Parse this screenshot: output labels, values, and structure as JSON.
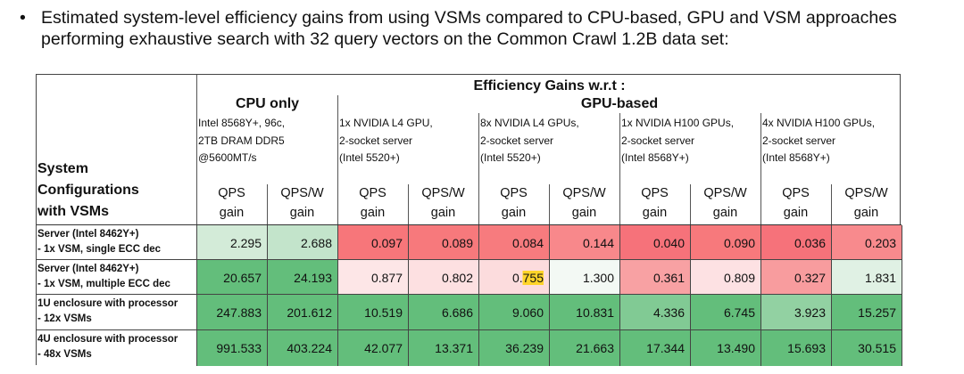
{
  "bullet": {
    "icon": "bullet-dot",
    "text": "Estimated system-level efficiency gains from using VSMs compared to CPU-based, GPU and VSM approaches performing exhaustive search with 32 query vectors on the Common Crawl 1.2B data set:"
  },
  "table": {
    "header_title": "Efficiency Gains w.r.t :",
    "row_header": [
      "System",
      "Configurations",
      "with VSMs"
    ],
    "groups": [
      {
        "label": "CPU only"
      },
      {
        "label": "GPU-based"
      }
    ],
    "systems": [
      [
        "Intel 8568Y+, 96c,",
        "2TB DRAM DDR5",
        "@5600MT/s"
      ],
      [
        "1x NVIDIA L4 GPU,",
        "2-socket server",
        "(Intel 5520+)"
      ],
      [
        "8x NVIDIA L4 GPUs,",
        "2-socket server",
        "(Intel 5520+)"
      ],
      [
        "1x NVIDIA H100 GPUs,",
        "2-socket server",
        "(Intel 8568Y+)"
      ],
      [
        "4x NVIDIA H100 GPUs,",
        "2-socket server",
        "(Intel 8568Y+)"
      ]
    ],
    "metric_labels": [
      [
        "QPS",
        "gain"
      ],
      [
        "QPS/W",
        "gain"
      ]
    ],
    "rows": [
      {
        "label": [
          "Server (Intel 8462Y+)",
          "- 1x VSM, single ECC dec"
        ],
        "values": [
          "2.295",
          "2.688",
          "0.097",
          "0.089",
          "0.084",
          "0.144",
          "0.040",
          "0.090",
          "0.036",
          "0.203"
        ],
        "colors": [
          "#d3ebd8",
          "#c3e4cb",
          "#f7767a",
          "#f7797c",
          "#f77b7e",
          "#f8888b",
          "#f6727a",
          "#f7797c",
          "#f6727a",
          "#f88a8d"
        ]
      },
      {
        "label": [
          "Server (Intel 8462Y+)",
          "- 1x VSM, multiple ECC dec"
        ],
        "values": [
          "20.657",
          "24.193",
          "0.877",
          "0.802",
          "0.755",
          "1.300",
          "0.361",
          "0.809",
          "0.327",
          "1.831"
        ],
        "highlight": {
          "index": 4,
          "text": "755",
          "color": "#ffd42a"
        },
        "colors": [
          "#63be7b",
          "#63be7b",
          "#fde6e7",
          "#fde0e1",
          "#fcdcdd",
          "#f3f9f4",
          "#f8a1a3",
          "#fde1e3",
          "#f89c9e",
          "#e0f1e4"
        ]
      },
      {
        "label": [
          "1U enclosure with processor",
          "- 12x VSMs"
        ],
        "values": [
          "247.883",
          "201.612",
          "10.519",
          "6.686",
          "9.060",
          "10.831",
          "4.336",
          "6.745",
          "3.923",
          "15.257"
        ],
        "colors": [
          "#63be7b",
          "#63be7b",
          "#63be7b",
          "#63be7b",
          "#63be7b",
          "#63be7b",
          "#81ca94",
          "#63be7b",
          "#92d1a2",
          "#63be7b"
        ]
      },
      {
        "label": [
          "4U enclosure with processor",
          "- 48x VSMs"
        ],
        "values": [
          "991.533",
          "403.224",
          "42.077",
          "13.371",
          "36.239",
          "21.663",
          "17.344",
          "13.490",
          "15.693",
          "30.515"
        ],
        "colors": [
          "#63be7b",
          "#63be7b",
          "#63be7b",
          "#63be7b",
          "#63be7b",
          "#63be7b",
          "#63be7b",
          "#63be7b",
          "#63be7b",
          "#63be7b"
        ]
      }
    ]
  }
}
